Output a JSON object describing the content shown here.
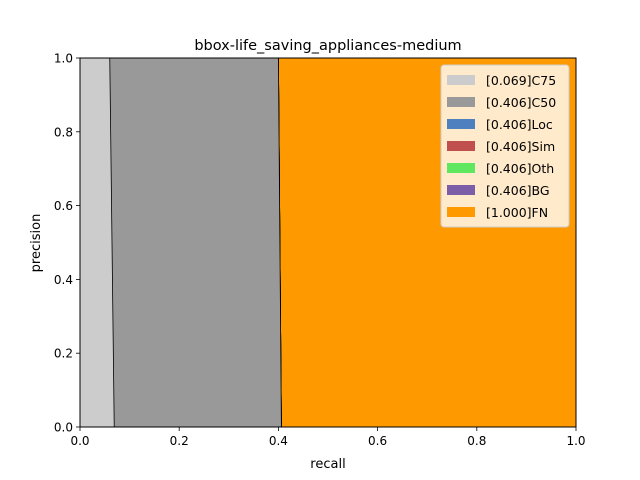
{
  "chart_data": {
    "type": "area",
    "title": "bbox-life_saving_appliances-medium",
    "xlabel": "recall",
    "ylabel": "precision",
    "xlim": [
      0,
      1
    ],
    "ylim": [
      0,
      1
    ],
    "xticks": [
      "0.0",
      "0.2",
      "0.4",
      "0.6",
      "0.8",
      "1.0"
    ],
    "yticks": [
      "0.0",
      "0.2",
      "0.4",
      "0.6",
      "0.8",
      "1.0"
    ],
    "grid": false,
    "legend_position": "top-right",
    "series": [
      {
        "name": "[0.069]C75",
        "color": "#cccccc",
        "points": [
          [
            0,
            1
          ],
          [
            0.06,
            1
          ],
          [
            0.069,
            0
          ],
          [
            0,
            0
          ]
        ]
      },
      {
        "name": "[0.406]C50",
        "color": "#999999",
        "points": [
          [
            0,
            1
          ],
          [
            0.4,
            1
          ],
          [
            0.406,
            0
          ],
          [
            0,
            0
          ]
        ]
      },
      {
        "name": "[0.406]Loc",
        "color": "#4e7fbf",
        "points": [
          [
            0,
            1
          ],
          [
            0.4,
            1
          ],
          [
            0.406,
            0
          ],
          [
            0,
            0
          ]
        ]
      },
      {
        "name": "[0.406]Sim",
        "color": "#c0504d",
        "points": [
          [
            0,
            1
          ],
          [
            0.4,
            1
          ],
          [
            0.406,
            0
          ],
          [
            0,
            0
          ]
        ]
      },
      {
        "name": "[0.406]Oth",
        "color": "#5fe85f",
        "points": [
          [
            0,
            1
          ],
          [
            0.4,
            1
          ],
          [
            0.406,
            0
          ],
          [
            0,
            0
          ]
        ]
      },
      {
        "name": "[0.406]BG",
        "color": "#7b5ea7",
        "points": [
          [
            0,
            1
          ],
          [
            0.4,
            1
          ],
          [
            0.406,
            0
          ],
          [
            0,
            0
          ]
        ]
      },
      {
        "name": "[1.000]FN",
        "color": "#ff9900",
        "points": [
          [
            0,
            1
          ],
          [
            1,
            1
          ],
          [
            1,
            0
          ],
          [
            0,
            0
          ]
        ]
      }
    ]
  }
}
